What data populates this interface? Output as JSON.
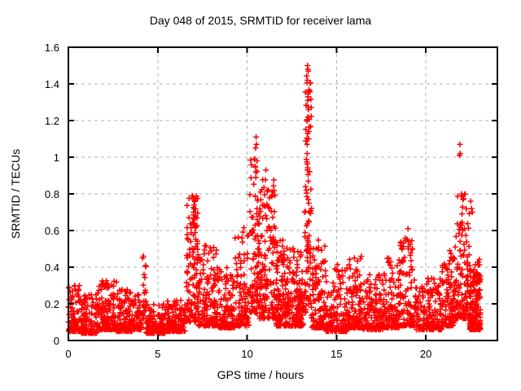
{
  "window": {
    "background": "#ffffff"
  },
  "chart_data": {
    "type": "scatter",
    "title": "Day 048 of 2015, SRMTID for receiver lama",
    "xlabel": "GPS time / hours",
    "ylabel": "SRMTID / TECUs",
    "xlim": [
      0,
      24
    ],
    "ylim": [
      0,
      1.6
    ],
    "xticks": [
      0,
      5,
      10,
      15,
      20
    ],
    "xtick_labels": [
      "0",
      "5",
      "10",
      "15",
      "20"
    ],
    "yticks": [
      0,
      0.2,
      0.4,
      0.6,
      0.8,
      1.0,
      1.2,
      1.4,
      1.6
    ],
    "ytick_labels": [
      "0",
      "0.2",
      "0.4",
      "0.6",
      "0.8",
      "1",
      "1.2",
      "1.4",
      "1.6"
    ],
    "grid": true,
    "grid_style": "dashed",
    "grid_color": "#b0b0b0",
    "axis_color": "#000000",
    "legend": "none",
    "marker": {
      "glyph": "plus",
      "color": "#ff0000",
      "size": 7
    },
    "seed": 20150048,
    "clusters": [
      [
        0.0,
        0.7,
        100,
        0.05,
        0.3,
        2.2
      ],
      [
        0.7,
        1.6,
        120,
        0.04,
        0.26,
        2.4
      ],
      [
        1.6,
        2.7,
        150,
        0.06,
        0.33,
        2.4
      ],
      [
        2.7,
        3.6,
        120,
        0.05,
        0.28,
        2.4
      ],
      [
        3.6,
        4.1,
        60,
        0.06,
        0.25,
        2.2
      ],
      [
        4.1,
        4.35,
        26,
        0.12,
        0.46,
        1.6
      ],
      [
        4.35,
        5.4,
        130,
        0.04,
        0.2,
        2.4
      ],
      [
        5.4,
        6.55,
        140,
        0.05,
        0.22,
        2.4
      ],
      [
        6.6,
        7.25,
        120,
        0.1,
        0.79,
        1.7
      ],
      [
        7.25,
        8.3,
        140,
        0.08,
        0.52,
        2.2
      ],
      [
        8.3,
        9.3,
        130,
        0.07,
        0.4,
        2.3
      ],
      [
        9.3,
        10.1,
        110,
        0.08,
        0.62,
        2.0
      ],
      [
        10.15,
        10.7,
        100,
        0.15,
        1.02,
        1.6
      ],
      [
        10.7,
        11.6,
        150,
        0.12,
        0.88,
        2.0
      ],
      [
        11.6,
        12.6,
        170,
        0.08,
        0.55,
        2.3
      ],
      [
        12.6,
        13.15,
        100,
        0.08,
        0.5,
        2.2
      ],
      [
        13.2,
        13.6,
        95,
        0.15,
        1.45,
        1.5
      ],
      [
        13.6,
        14.4,
        120,
        0.07,
        0.55,
        2.3
      ],
      [
        14.4,
        15.6,
        140,
        0.05,
        0.42,
        2.4
      ],
      [
        15.6,
        16.4,
        110,
        0.07,
        0.47,
        2.2
      ],
      [
        16.4,
        17.6,
        140,
        0.06,
        0.36,
        2.4
      ],
      [
        17.6,
        18.5,
        120,
        0.07,
        0.45,
        2.3
      ],
      [
        18.5,
        19.4,
        110,
        0.08,
        0.56,
        2.0
      ],
      [
        19.4,
        20.9,
        170,
        0.06,
        0.34,
        2.4
      ],
      [
        20.9,
        21.6,
        110,
        0.08,
        0.5,
        2.1
      ],
      [
        21.6,
        22.45,
        130,
        0.12,
        0.8,
        1.8
      ],
      [
        22.45,
        23.05,
        190,
        0.06,
        0.45,
        2.0
      ]
    ],
    "outliers": [
      [
        4.2,
        0.46
      ],
      [
        6.93,
        0.79
      ],
      [
        6.98,
        0.78
      ],
      [
        7.03,
        0.74
      ],
      [
        7.0,
        0.7
      ],
      [
        10.5,
        1.11
      ],
      [
        10.52,
        1.07
      ],
      [
        10.47,
        1.05
      ],
      [
        10.55,
        0.98
      ],
      [
        10.45,
        0.95
      ],
      [
        11.05,
        0.93
      ],
      [
        13.38,
        1.5
      ],
      [
        13.4,
        1.48
      ],
      [
        13.42,
        1.47
      ],
      [
        13.37,
        1.42
      ],
      [
        13.41,
        1.33
      ],
      [
        13.39,
        1.31
      ],
      [
        13.43,
        1.26
      ],
      [
        13.4,
        1.22
      ],
      [
        13.38,
        1.13
      ],
      [
        13.44,
        1.1
      ],
      [
        13.36,
        1.02
      ],
      [
        16.0,
        0.45
      ],
      [
        19.0,
        0.61
      ],
      [
        19.02,
        0.5
      ],
      [
        21.9,
        1.07
      ],
      [
        21.92,
        1.02
      ],
      [
        21.88,
        1.01
      ],
      [
        22.0,
        0.8
      ],
      [
        22.5,
        0.76
      ],
      [
        22.55,
        0.72
      ],
      [
        22.6,
        0.7
      ]
    ]
  }
}
